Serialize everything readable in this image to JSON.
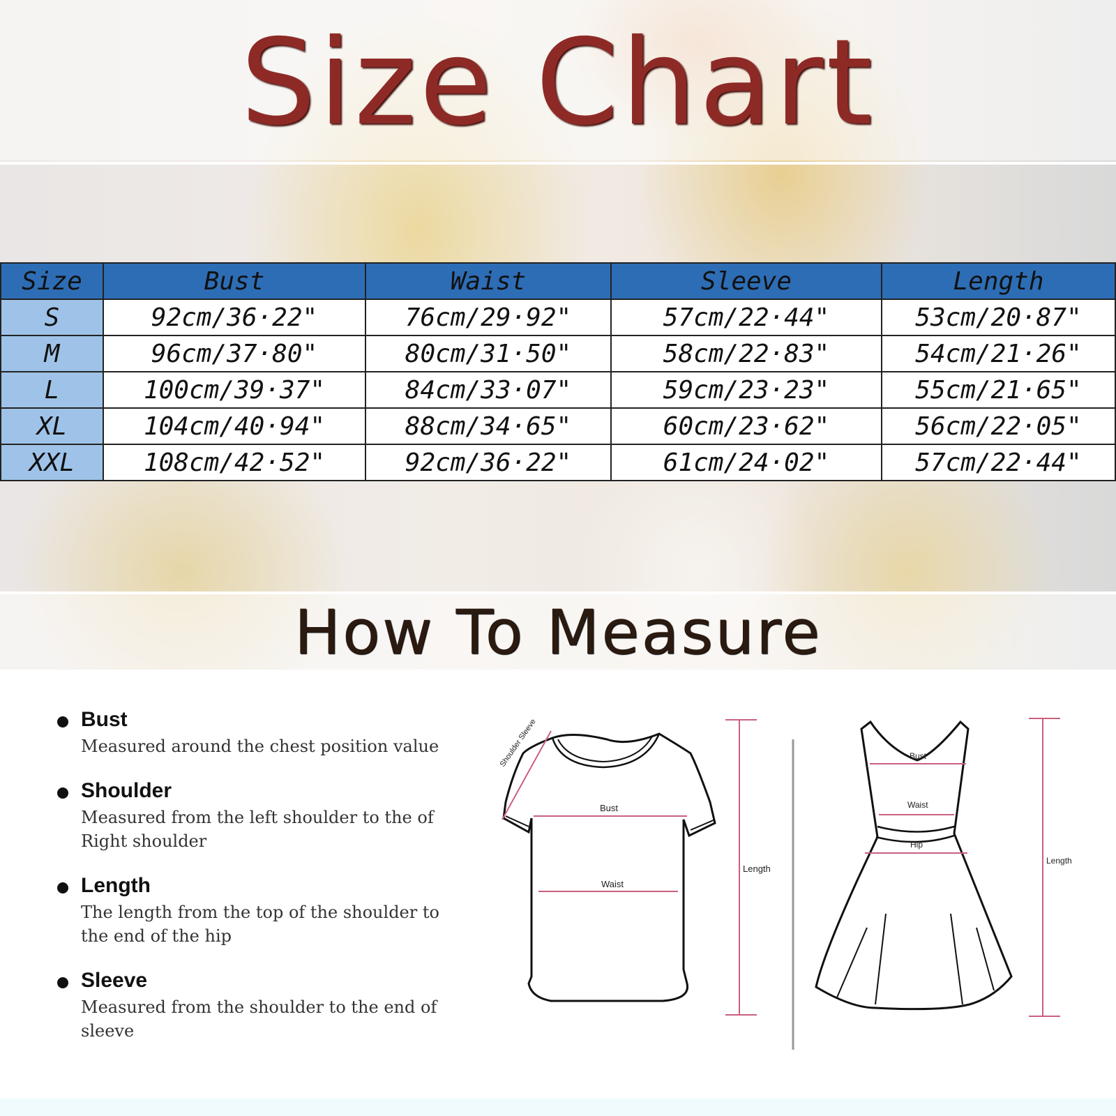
{
  "title": "Size Chart",
  "subtitle": "How To Measure",
  "table": {
    "headers": [
      "Size",
      "Bust",
      "Waist",
      "Sleeve",
      "Length"
    ],
    "rows": [
      [
        "S",
        "92cm/36·22\"",
        "76cm/29·92\"",
        "57cm/22·44\"",
        "53cm/20·87\""
      ],
      [
        "M",
        "96cm/37·80\"",
        "80cm/31·50\"",
        "58cm/22·83\"",
        "54cm/21·26\""
      ],
      [
        "L",
        "100cm/39·37\"",
        "84cm/33·07\"",
        "59cm/23·23\"",
        "55cm/21·65\""
      ],
      [
        "XL",
        "104cm/40·94\"",
        "88cm/34·65\"",
        "60cm/23·62\"",
        "56cm/22·05\""
      ],
      [
        "XXL",
        "108cm/42·52\"",
        "92cm/36·22\"",
        "61cm/24·02\"",
        "57cm/22·44\""
      ]
    ]
  },
  "measure": [
    {
      "name": "Bust",
      "desc": "Measured around the chest position value"
    },
    {
      "name": "Shoulder",
      "desc": "Measured from the left shoulder to the of Right shoulder"
    },
    {
      "name": "Length",
      "desc": "The length from the top of the shoulder to the end of the hip"
    },
    {
      "name": "Sleeve",
      "desc": "Measured from the shoulder to the end of sleeve"
    }
  ],
  "diagram": {
    "shirt": {
      "sleeve": "Shoulder Sleeve",
      "bust": "Bust",
      "waist": "Waist",
      "length": "Length"
    },
    "dress": {
      "bust": "Bust",
      "waist": "Waist",
      "hip": "Hip",
      "length": "Length"
    }
  },
  "colors": {
    "title": "#8e2a26",
    "header": "#2d6db5",
    "size_col": "#9fc3e8",
    "measure_line": "#c9607e"
  }
}
